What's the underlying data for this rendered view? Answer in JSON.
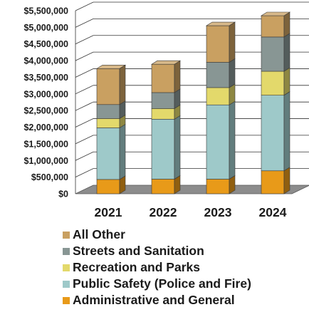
{
  "chart_data": {
    "type": "bar",
    "stacked": true,
    "three_d": true,
    "categories": [
      "2021",
      "2022",
      "2023",
      "2024"
    ],
    "ylim": [
      0,
      5500000
    ],
    "y_tick_values": [
      0,
      500000,
      1000000,
      1500000,
      2000000,
      2500000,
      3000000,
      3500000,
      4000000,
      4500000,
      5000000,
      5500000
    ],
    "y_tick_labels": [
      "$0",
      "$500,000",
      "$1,000,000",
      "$1,500,000",
      "$2,000,000",
      "$2,500,000",
      "$3,000,000",
      "$3,500,000",
      "$4,000,000",
      "$4,500,000",
      "$5,000,000",
      "$5,500,000"
    ],
    "grid": true,
    "legend_position": "bottom",
    "series": [
      {
        "name": "Administrative and General",
        "color": "#e89a19",
        "values": [
          430000,
          440000,
          440000,
          690000
        ]
      },
      {
        "name": "Public Safety (Police and Fire)",
        "color": "#9ec9c9",
        "values": [
          1550000,
          1800000,
          2230000,
          2270000
        ]
      },
      {
        "name": "Recreation and Parks",
        "color": "#e3d96b",
        "values": [
          280000,
          320000,
          520000,
          720000
        ]
      },
      {
        "name": "Streets and Sanitation",
        "color": "#889694",
        "values": [
          420000,
          480000,
          760000,
          1030000
        ]
      },
      {
        "name": "All Other",
        "color": "#c9a061",
        "values": [
          1080000,
          850000,
          1100000,
          640000
        ]
      }
    ],
    "legend_order": [
      "All Other",
      "Streets and Sanitation",
      "Recreation and Parks",
      "Public Safety (Police and Fire)",
      "Administrative and General"
    ]
  }
}
